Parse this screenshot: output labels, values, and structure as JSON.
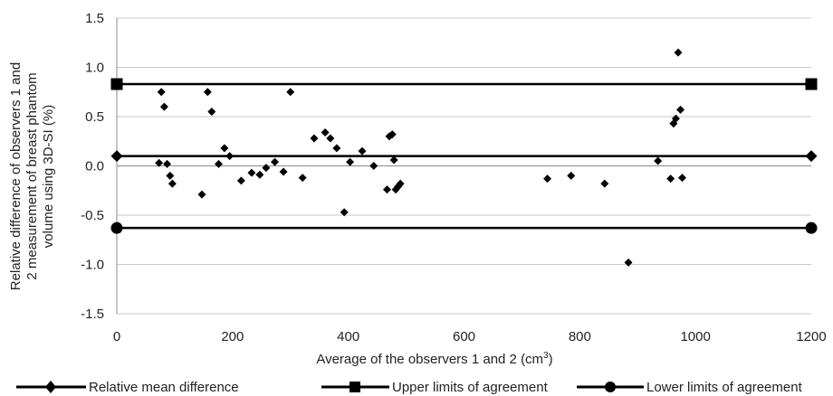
{
  "chart_data": {
    "type": "scatter",
    "title": "",
    "xlabel": "Average of the observers 1 and 2 (cm",
    "xlabel_sup": "3",
    "xlabel_end": ")",
    "ylabel_lines": [
      "Relative difference of observers 1 and",
      "2 measurement of breast phantom",
      "volume using 3D-SI (%)"
    ],
    "xlim": [
      0,
      1200
    ],
    "ylim": [
      -1.5,
      1.5
    ],
    "x_ticks": [
      0,
      200,
      400,
      600,
      800,
      1000,
      1200
    ],
    "y_ticks": [
      -1.5,
      -1.0,
      -0.5,
      0.0,
      0.5,
      1.0,
      1.5
    ],
    "x_tick_labels": [
      "0",
      "200",
      "400",
      "600",
      "800",
      "1000",
      "1200"
    ],
    "y_tick_labels": [
      "-1.5",
      "-1.0",
      "-0.5",
      "0.0",
      "0.5",
      "1.0",
      "1.5"
    ],
    "grid": "horizontal",
    "legend_position": "bottom",
    "series": [
      {
        "name": "",
        "kind": "points",
        "marker": "diamond",
        "color": "#000000",
        "points": [
          [
            73,
            0.03
          ],
          [
            77,
            0.75
          ],
          [
            82,
            0.6
          ],
          [
            87,
            0.02
          ],
          [
            92,
            -0.1
          ],
          [
            96,
            -0.18
          ],
          [
            147,
            -0.29
          ],
          [
            157,
            0.75
          ],
          [
            164,
            0.55
          ],
          [
            176,
            0.02
          ],
          [
            186,
            0.18
          ],
          [
            195,
            0.1
          ],
          [
            215,
            -0.15
          ],
          [
            233,
            -0.07
          ],
          [
            247,
            -0.09
          ],
          [
            258,
            -0.02
          ],
          [
            273,
            0.04
          ],
          [
            288,
            -0.06
          ],
          [
            300,
            0.75
          ],
          [
            321,
            -0.12
          ],
          [
            341,
            0.28
          ],
          [
            360,
            0.34
          ],
          [
            369,
            0.28
          ],
          [
            380,
            0.18
          ],
          [
            393,
            -0.47
          ],
          [
            403,
            0.04
          ],
          [
            424,
            0.15
          ],
          [
            444,
            0.0
          ],
          [
            467,
            -0.24
          ],
          [
            471,
            0.3
          ],
          [
            476,
            0.32
          ],
          [
            479,
            0.06
          ],
          [
            482,
            -0.24
          ],
          [
            486,
            -0.21
          ],
          [
            490,
            -0.18
          ],
          [
            744,
            -0.13
          ],
          [
            785,
            -0.1
          ],
          [
            843,
            -0.18
          ],
          [
            884,
            -0.98
          ],
          [
            935,
            0.05
          ],
          [
            957,
            -0.13
          ],
          [
            962,
            0.43
          ],
          [
            966,
            0.48
          ],
          [
            970,
            1.15
          ],
          [
            974,
            0.57
          ],
          [
            977,
            -0.12
          ]
        ]
      },
      {
        "name": "Relative mean difference",
        "kind": "line",
        "marker": "diamond",
        "color": "#000000",
        "points": [
          [
            0,
            0.1
          ],
          [
            1200,
            0.1
          ]
        ]
      },
      {
        "name": "Upper limits of agreement",
        "kind": "line",
        "marker": "square",
        "color": "#000000",
        "points": [
          [
            0,
            0.83
          ],
          [
            1200,
            0.83
          ]
        ]
      },
      {
        "name": "Lower limits of agreement",
        "kind": "line",
        "marker": "circle",
        "color": "#000000",
        "points": [
          [
            0,
            -0.63
          ],
          [
            1200,
            -0.63
          ]
        ]
      }
    ]
  }
}
